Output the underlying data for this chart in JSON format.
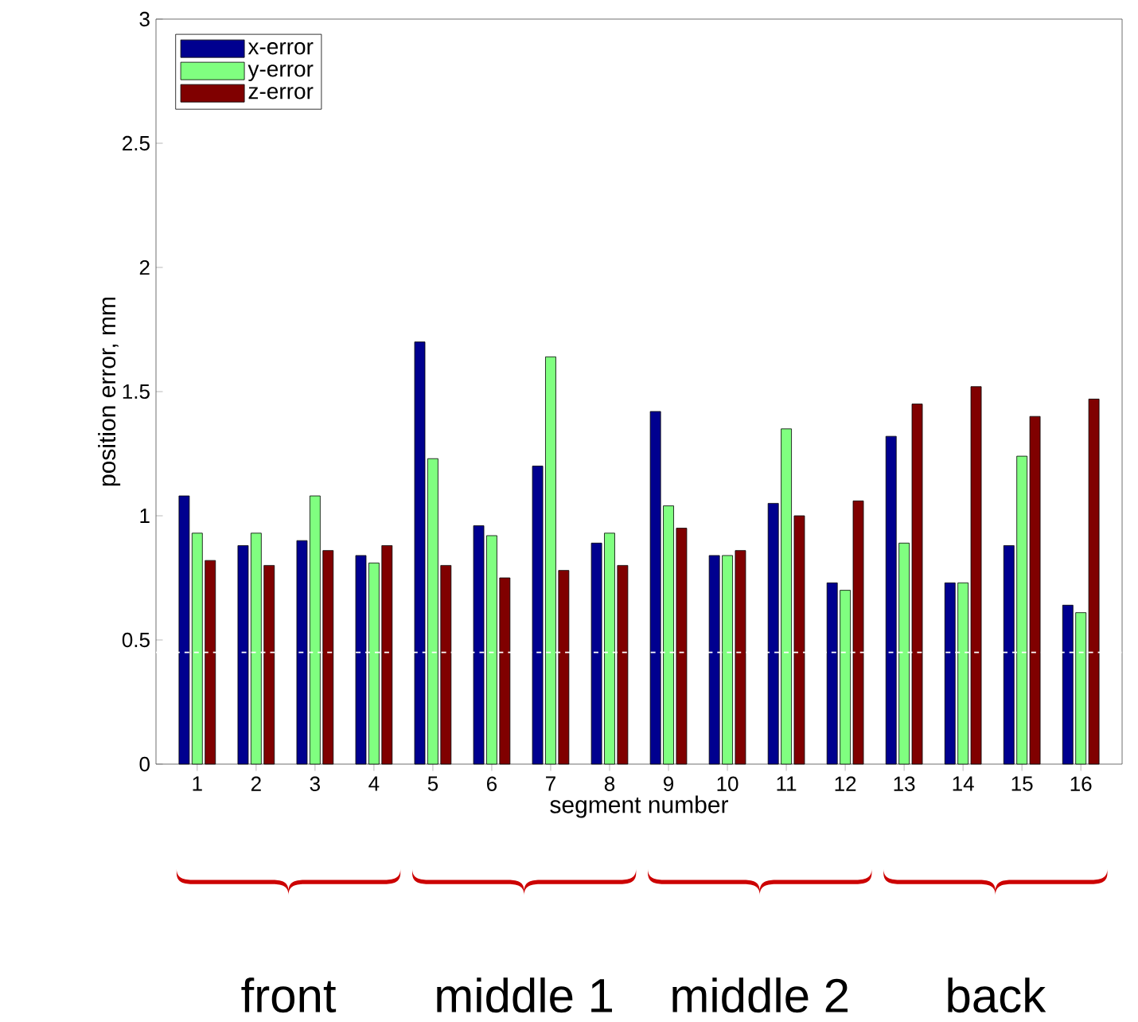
{
  "chart_data": {
    "type": "bar",
    "xlabel": "segment number",
    "ylabel": "position error, mm",
    "categories": [
      "1",
      "2",
      "3",
      "4",
      "5",
      "6",
      "7",
      "8",
      "9",
      "10",
      "11",
      "12",
      "13",
      "14",
      "15",
      "16"
    ],
    "series": [
      {
        "name": "x-error",
        "color": "#00008f",
        "values": [
          1.08,
          0.88,
          0.9,
          0.84,
          1.7,
          0.96,
          1.2,
          0.89,
          1.42,
          0.84,
          1.05,
          0.73,
          1.32,
          0.73,
          0.88,
          0.64
        ]
      },
      {
        "name": "y-error",
        "color": "#80ff80",
        "values": [
          0.93,
          0.93,
          1.08,
          0.81,
          1.23,
          0.92,
          1.64,
          0.93,
          1.04,
          0.84,
          1.35,
          0.7,
          0.89,
          0.73,
          1.24,
          0.61
        ]
      },
      {
        "name": "z-error",
        "color": "#800000",
        "values": [
          0.82,
          0.8,
          0.86,
          0.88,
          0.8,
          0.75,
          0.78,
          0.8,
          0.95,
          0.86,
          1.0,
          1.06,
          1.45,
          1.52,
          1.4,
          1.47
        ]
      }
    ],
    "ylim": [
      0,
      3
    ],
    "yticks": [
      0,
      0.5,
      1,
      1.5,
      2,
      2.5,
      3
    ],
    "ref_lines": [
      {
        "axis": "y",
        "value": 0.45,
        "color": "#ffffff",
        "line_style": "dashed"
      }
    ],
    "annotations": [
      "front",
      "middle 1",
      "middle 2",
      "back"
    ],
    "legend": "top left",
    "grid": false
  }
}
